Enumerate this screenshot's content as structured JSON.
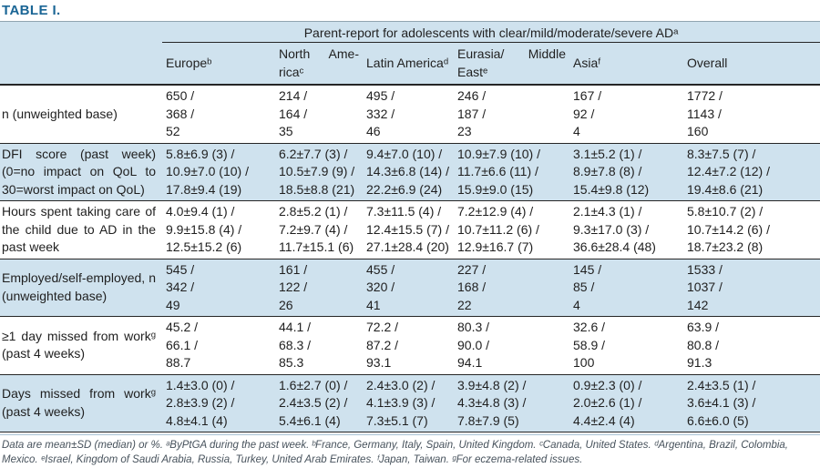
{
  "title": "TABLE I.",
  "colors": {
    "accent_title": "#1a6595",
    "band_blue": "#cfe2ee",
    "rule_dark": "#262626",
    "rule_light": "#aac4d6"
  },
  "table": {
    "span_header": "Parent-report for adolescents with clear/mild/moderate/severe ADᵃ",
    "columns": [
      "Europeᵇ",
      "North Ame­ricaᶜ",
      "Latin Americaᵈ",
      "Eurasia/ Middle Eastᵉ",
      "Asiaᶠ",
      "Overall"
    ],
    "rows": [
      {
        "label": "n (unweighted base)",
        "cells": [
          [
            "650 /",
            "368 /",
            "52"
          ],
          [
            "214 /",
            "164 /",
            "35"
          ],
          [
            "495 /",
            "332 /",
            "46"
          ],
          [
            "246 /",
            "187 /",
            "23"
          ],
          [
            "167 /",
            "92 /",
            "4"
          ],
          [
            "1772 /",
            "1143 /",
            "160"
          ]
        ]
      },
      {
        "label": "DFI score (past week) (0=no impact on QoL to 30=worst impact on QoL)",
        "cells": [
          [
            "5.8±6.9 (3) /",
            "10.9±7.0 (10) /",
            "17.8±9.4 (19)"
          ],
          [
            "6.2±7.7 (3) /",
            "10.5±7.9 (9) /",
            "18.5±8.8 (21)"
          ],
          [
            "9.4±7.0 (10) /",
            "14.3±6.8 (14) /",
            "22.2±6.9 (24)"
          ],
          [
            "10.9±7.9 (10) /",
            "11.7±6.6 (11) /",
            "15.9±9.0 (15)"
          ],
          [
            "3.1±5.2 (1) /",
            "8.9±7.8 (8) /",
            "15.4±9.8 (12)"
          ],
          [
            "8.3±7.5 (7) /",
            "12.4±7.2 (12) /",
            "19.4±8.6 (21)"
          ]
        ]
      },
      {
        "label": "Hours spent taking care of the child due to AD in the past week",
        "cells": [
          [
            "4.0±9.4 (1) /",
            "9.9±15.8 (4) /",
            "12.5±15.2 (6)"
          ],
          [
            "2.8±5.2 (1) /",
            "7.2±9.7 (4) /",
            "11.7±15.1 (6)"
          ],
          [
            "7.3±11.5 (4) /",
            "12.4±15.5 (7) /",
            "27.1±28.4 (20)"
          ],
          [
            "7.2±12.9 (4) /",
            "10.7±11.2 (6) /",
            "12.9±16.7 (7)"
          ],
          [
            "2.1±4.3 (1) /",
            "9.3±17.0 (3) /",
            "36.6±28.4 (48)"
          ],
          [
            "5.8±10.7 (2) /",
            "10.7±14.2 (6) /",
            "18.7±23.2 (8)"
          ]
        ]
      },
      {
        "label": "Employed/self-employed, n (unweighted base)",
        "cells": [
          [
            "545 /",
            "342 /",
            "49"
          ],
          [
            "161 /",
            "122 /",
            "26"
          ],
          [
            "455 /",
            "320 /",
            "41"
          ],
          [
            "227 /",
            "168 /",
            "22"
          ],
          [
            "145 /",
            "85 /",
            "4"
          ],
          [
            "1533 /",
            "1037 /",
            "142"
          ]
        ]
      },
      {
        "label": "≥1 day missed from workᵍ (past 4 weeks)",
        "cells": [
          [
            "45.2 /",
            "66.1 /",
            "88.7"
          ],
          [
            "44.1 /",
            "68.3 /",
            "85.3"
          ],
          [
            "72.2 /",
            "87.2 /",
            "93.1"
          ],
          [
            "80.3 /",
            "90.0 /",
            "94.1"
          ],
          [
            "32.6 /",
            "58.9 /",
            "100"
          ],
          [
            "63.9 /",
            "80.8 /",
            "91.3"
          ]
        ]
      },
      {
        "label": "Days missed from workᵍ (past 4 weeks)",
        "cells": [
          [
            "1.4±3.0 (0) /",
            "2.8±3.9 (2) /",
            "4.8±4.1 (4)"
          ],
          [
            "1.6±2.7 (0) /",
            "2.4±3.5 (2) /",
            "5.4±6.1 (4)"
          ],
          [
            "2.4±3.0 (2) /",
            "4.1±3.9 (3) /",
            "7.3±5.1 (7)"
          ],
          [
            "3.9±4.8 (2) /",
            "4.3±4.8 (3) /",
            "7.8±7.9 (5)"
          ],
          [
            "0.9±2.3 (0) /",
            "2.0±2.6 (1) /",
            "4.4±2.4 (4)"
          ],
          [
            "2.4±3.5 (1) /",
            "3.6±4.1 (3) /",
            "6.6±6.0 (5)"
          ]
        ]
      }
    ]
  },
  "footnote": "Data are mean±SD (median) or %. ᵃByPtGA during the past week. ᵇFrance, Germany, Italy, Spain, United Kingdom. ᶜCanada, United States. ᵈArgentina, Brazil, Colombia, Mexico. ᵉIsrael, Kingdom of Saudi Arabia, Russia, Turkey, United Arab Emirates. ᶠJapan, Taiwan. ᵍFor eczema-related issues."
}
